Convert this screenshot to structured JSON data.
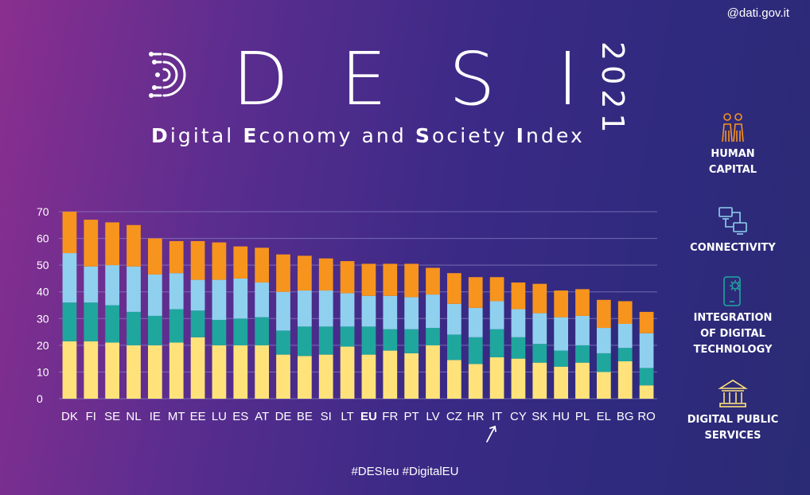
{
  "attribution": "@dati.gov.it",
  "header": {
    "letters": [
      "D",
      "E",
      "S",
      "I"
    ],
    "year": "2021",
    "subtitle_parts": [
      {
        "b": "D",
        "t": "igital "
      },
      {
        "b": "E",
        "t": "conomy and "
      },
      {
        "b": "S",
        "t": "ociety "
      },
      {
        "b": "I",
        "t": "ndex"
      }
    ]
  },
  "hashtags": "#DESIeu  #DigitalEU",
  "legend": [
    {
      "label": "HUMAN\nCAPITAL",
      "icon": "people-icon",
      "color": "#f7941d"
    },
    {
      "label": "CONNECTIVITY",
      "icon": "network-icon",
      "color": "#8fd0ee"
    },
    {
      "label": "INTEGRATION\nOF DIGITAL\nTECHNOLOGY",
      "icon": "phone-gear-icon",
      "color": "#1fa79e"
    },
    {
      "label": "DIGITAL PUBLIC\nSERVICES",
      "icon": "building-icon",
      "color": "#ffe37a"
    }
  ],
  "chart_data": {
    "type": "bar",
    "stacked": true,
    "categories": [
      "DK",
      "FI",
      "SE",
      "NL",
      "IE",
      "MT",
      "EE",
      "LU",
      "ES",
      "AT",
      "DE",
      "BE",
      "SI",
      "LT",
      "EU",
      "FR",
      "PT",
      "LV",
      "CZ",
      "HR",
      "IT",
      "CY",
      "SK",
      "HU",
      "PL",
      "EL",
      "BG",
      "RO"
    ],
    "highlight_category": "EU",
    "arrow_category": "IT",
    "ylim": [
      0,
      70
    ],
    "yticks": [
      0,
      10,
      20,
      30,
      40,
      50,
      60,
      70
    ],
    "grid": true,
    "series": [
      {
        "color": "#ffe37a",
        "values": [
          21.5,
          21.5,
          21,
          20,
          20,
          21,
          23,
          20,
          20,
          20,
          16.5,
          16,
          16.5,
          19.5,
          16.5,
          18,
          17,
          20,
          14.5,
          13,
          15.5,
          15,
          13.5,
          12,
          13.5,
          10,
          14,
          5
        ]
      },
      {
        "color": "#1fa79e",
        "values": [
          14.5,
          14.5,
          14,
          12.5,
          11,
          12.5,
          10,
          9.5,
          10,
          10.5,
          9,
          11,
          10.5,
          7.5,
          10.5,
          8,
          9,
          6.5,
          9.5,
          10,
          10.5,
          8,
          7,
          6,
          6.5,
          7,
          5,
          6.5
        ]
      },
      {
        "color": "#8fd0ee",
        "values": [
          18.5,
          13.5,
          15,
          17,
          15.5,
          13.5,
          11.5,
          15,
          15,
          13,
          14.5,
          13.5,
          13.5,
          12.5,
          11.5,
          12.5,
          12,
          12.5,
          11.5,
          11,
          10.5,
          10.5,
          11.5,
          12.5,
          11,
          9.5,
          9,
          13
        ]
      },
      {
        "color": "#f7941d",
        "values": [
          15.5,
          17.5,
          16,
          15.5,
          13.5,
          12,
          14.5,
          14,
          12,
          13,
          14,
          13,
          12,
          12,
          12,
          12,
          12.5,
          10,
          11.5,
          11.5,
          9,
          10,
          11,
          10,
          10,
          10.5,
          8.5,
          8
        ]
      }
    ]
  }
}
